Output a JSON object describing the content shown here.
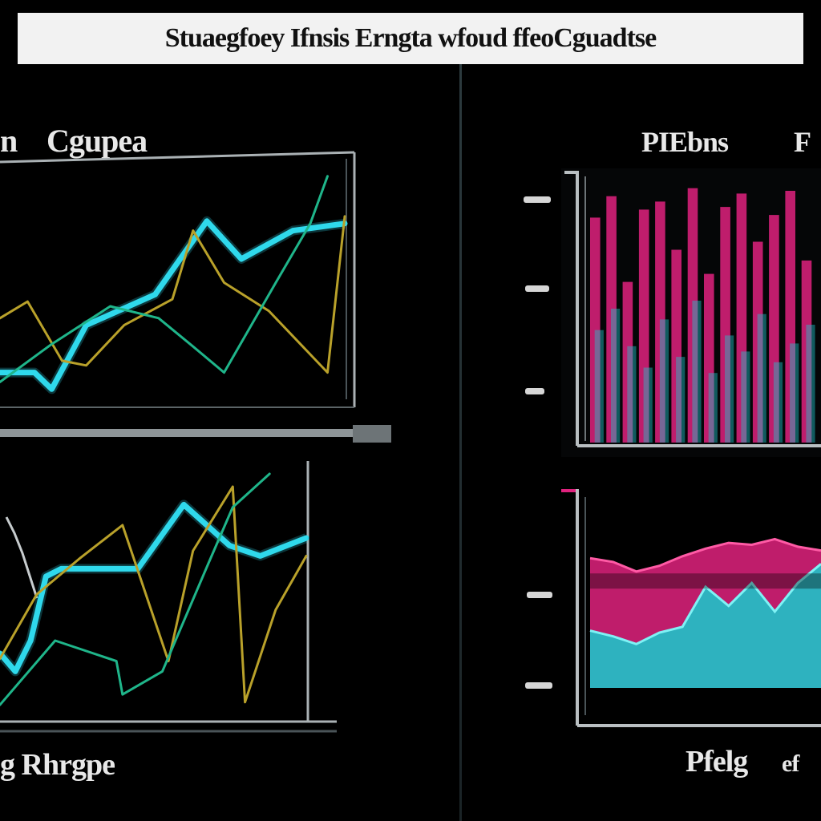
{
  "banner": {
    "title": "Stuaegfoey Ifnsis Erngta wfoud ffeoCguadtse"
  },
  "panels": {
    "top_left": {
      "label_a": "n",
      "label_b": "Cgupea"
    },
    "top_right": {
      "label_a": "PIEbns",
      "label_b": "F"
    },
    "bottom_left": {
      "label": "g Rhrgpe"
    },
    "bottom_right": {
      "label_a": "Pfelg",
      "label_b": "ef"
    }
  },
  "colors": {
    "cyan": "#2fd9ec",
    "gold": "#b9a12a",
    "green": "#1fb58a",
    "magenta": "#e0227e",
    "teal": "#1ec3c9",
    "frame": "#b9bfc2"
  },
  "chart_data": [
    {
      "type": "line",
      "xlim": [
        0,
        10
      ],
      "ylim": [
        0,
        10
      ],
      "series": [
        {
          "x": [
            0,
            1,
            1.5,
            2.5,
            4.5,
            6,
            7,
            8.5,
            10
          ],
          "values": [
            1.2,
            1.2,
            0.5,
            3.2,
            4.5,
            7.6,
            6.0,
            7.2,
            7.5
          ]
        },
        {
          "x": [
            0,
            0.8,
            1.8,
            2.5,
            3.6,
            5,
            5.6,
            6.5,
            7.8,
            9.5,
            10
          ],
          "values": [
            3.5,
            4.2,
            1.7,
            1.5,
            3.2,
            4.3,
            7.2,
            5.0,
            3.8,
            1.2,
            7.8
          ]
        },
        {
          "x": [
            0,
            1.5,
            3.2,
            4.6,
            5.6,
            6.5,
            8,
            9,
            9.5
          ],
          "values": [
            0.8,
            2.4,
            4.0,
            3.5,
            2.3,
            1.2,
            5.0,
            7.5,
            9.5
          ]
        }
      ]
    },
    {
      "type": "bar",
      "categories": [
        "1",
        "2",
        "3",
        "4",
        "5",
        "6",
        "7",
        "8",
        "9",
        "10",
        "11",
        "12",
        "13",
        "14"
      ],
      "ylim": [
        0,
        10
      ],
      "series": [
        {
          "values": [
            8.4,
            9.2,
            6.0,
            8.7,
            9.0,
            7.2,
            9.5,
            6.3,
            8.8,
            9.3,
            7.5,
            8.5,
            9.4,
            6.8
          ]
        },
        {
          "values": [
            4.2,
            5.0,
            3.6,
            2.8,
            4.6,
            3.2,
            5.3,
            2.6,
            4.0,
            3.4,
            4.8,
            3.0,
            3.7,
            4.4
          ]
        }
      ]
    },
    {
      "type": "line",
      "xlim": [
        0,
        10
      ],
      "ylim": [
        0,
        10
      ],
      "series": [
        {
          "x": [
            0,
            0.5,
            1,
            1.5,
            2,
            4.5,
            6,
            7.5,
            8.5,
            10
          ],
          "values": [
            2.5,
            1.8,
            3.0,
            5.5,
            5.8,
            5.8,
            8.3,
            6.7,
            6.3,
            7.0
          ]
        },
        {
          "x": [
            0,
            1.2,
            2.6,
            4,
            5.5,
            6.3,
            7.6,
            8,
            9,
            10
          ],
          "values": [
            2.3,
            4.8,
            6.2,
            7.5,
            2.2,
            6.5,
            9.0,
            0.6,
            4.2,
            6.3
          ]
        },
        {
          "x": [
            0,
            1.8,
            3.8,
            4,
            5.3,
            6.8,
            7.6,
            8.8
          ],
          "values": [
            0.5,
            3.0,
            2.2,
            0.9,
            1.8,
            6.0,
            8.2,
            9.5
          ]
        }
      ]
    },
    {
      "type": "area",
      "xlim": [
        0,
        10
      ],
      "ylim": [
        0,
        10
      ],
      "series": [
        {
          "x": [
            0,
            1,
            2,
            3,
            4,
            5,
            6,
            7,
            8,
            9,
            10
          ],
          "values": [
            6.8,
            6.6,
            6.1,
            6.4,
            6.9,
            7.3,
            7.6,
            7.5,
            7.8,
            7.4,
            7.2
          ]
        },
        {
          "x": [
            0,
            1,
            2,
            3,
            4,
            5,
            6,
            7,
            8,
            9,
            10
          ],
          "values": [
            3.0,
            2.7,
            2.3,
            2.9,
            3.2,
            5.3,
            4.3,
            5.5,
            4.0,
            5.5,
            6.5
          ]
        }
      ]
    }
  ]
}
